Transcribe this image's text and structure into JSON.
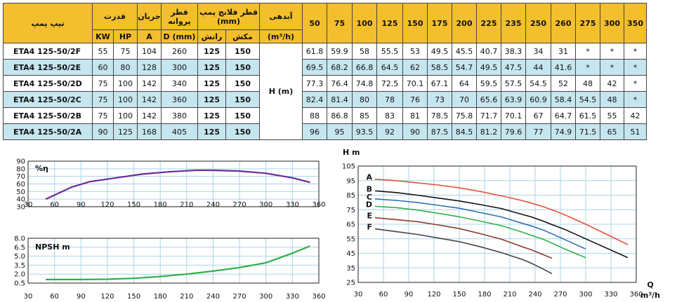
{
  "table": {
    "headers": {
      "model": "تیپ پمپ",
      "power": "قدرت",
      "current": "جریان",
      "impeller": "قطر پروانه",
      "flange": "قطر فلانچ پمپ (mm)",
      "flow": "آبدهی",
      "kw": "KW",
      "hp": "HP",
      "amp": "A",
      "dmm": "D (mm)",
      "discharge": "رانش",
      "suction": "مکش",
      "flow_unit": "(m³/h)",
      "head_label": "H (m)"
    },
    "flow_columns": [
      "50",
      "75",
      "100",
      "125",
      "150",
      "175",
      "200",
      "225",
      "235",
      "250",
      "260",
      "275",
      "300",
      "350"
    ],
    "rows": [
      {
        "model": "ETA4 125-50/2F",
        "kw": "55",
        "hp": "75",
        "a": "104",
        "d": "260",
        "dis": "125",
        "suc": "150",
        "h": [
          "61.8",
          "59.9",
          "58",
          "55.5",
          "53",
          "49.5",
          "45.5",
          "40.7",
          "38.3",
          "34",
          "31",
          "*",
          "*",
          "*"
        ]
      },
      {
        "model": "ETA4 125-50/2E",
        "kw": "60",
        "hp": "80",
        "a": "128",
        "d": "300",
        "dis": "125",
        "suc": "150",
        "h": [
          "69.5",
          "68.2",
          "66.8",
          "64.5",
          "62",
          "58.5",
          "54.7",
          "49.5",
          "47.5",
          "44",
          "41.6",
          "*",
          "*",
          "*"
        ]
      },
      {
        "model": "ETA4 125-50/2D",
        "kw": "75",
        "hp": "100",
        "a": "142",
        "d": "340",
        "dis": "125",
        "suc": "150",
        "h": [
          "77.3",
          "76.4",
          "74.8",
          "72.5",
          "70.1",
          "67.1",
          "64",
          "59.5",
          "57.5",
          "54.5",
          "52",
          "48",
          "42",
          "*"
        ]
      },
      {
        "model": "ETA4 125-50/2C",
        "kw": "75",
        "hp": "100",
        "a": "142",
        "d": "360",
        "dis": "125",
        "suc": "150",
        "h": [
          "82.4",
          "81.4",
          "80",
          "78",
          "76",
          "73",
          "70",
          "65.6",
          "63.9",
          "60.9",
          "58.4",
          "54.5",
          "48",
          "*"
        ]
      },
      {
        "model": "ETA4 125-50/2B",
        "kw": "75",
        "hp": "100",
        "a": "142",
        "d": "380",
        "dis": "125",
        "suc": "150",
        "h": [
          "88",
          "86.8",
          "85",
          "83",
          "81",
          "78.5",
          "75.8",
          "71.7",
          "70.1",
          "67",
          "64.7",
          "61.5",
          "55",
          "42"
        ]
      },
      {
        "model": "ETA4 125-50/2A",
        "kw": "90",
        "hp": "125",
        "a": "168",
        "d": "405",
        "dis": "125",
        "suc": "150",
        "h": [
          "96",
          "95",
          "93.5",
          "92",
          "90",
          "87.5",
          "84.5",
          "81.2",
          "79.6",
          "77",
          "74.9",
          "71.5",
          "65",
          "51"
        ]
      }
    ]
  },
  "chart_data": [
    {
      "type": "line",
      "title": "%η",
      "x_ticks": [
        "30",
        "60",
        "90",
        "120",
        "150",
        "180",
        "210",
        "240",
        "270",
        "300",
        "330",
        "360"
      ],
      "y_ticks": [
        "90",
        "80",
        "70",
        "60",
        "50",
        "40",
        "30"
      ],
      "xlim": [
        30,
        360
      ],
      "ylim": [
        30,
        90
      ],
      "series": [
        {
          "color": "#6a2b9a",
          "x": [
            50,
            80,
            100,
            130,
            160,
            190,
            220,
            240,
            270,
            300,
            330,
            350
          ],
          "y": [
            40,
            56,
            63,
            68,
            73,
            76,
            78,
            78,
            77,
            74,
            68,
            62
          ]
        }
      ]
    },
    {
      "type": "line",
      "title": "NPSH m",
      "x_ticks": [
        "30",
        "60",
        "90",
        "120",
        "150",
        "180",
        "210",
        "240",
        "270",
        "300",
        "330",
        "360"
      ],
      "y_ticks": [
        "8.0",
        "6.5",
        "5.0",
        "3.5",
        "2.0",
        "0.5"
      ],
      "xlim": [
        30,
        360
      ],
      "ylim": [
        0.5,
        8.0
      ],
      "series": [
        {
          "color": "#2fb04a",
          "x": [
            50,
            90,
            120,
            150,
            180,
            210,
            240,
            270,
            300,
            330,
            350
          ],
          "y": [
            1.1,
            1.1,
            1.15,
            1.3,
            1.6,
            2.0,
            2.5,
            3.1,
            3.9,
            5.5,
            6.7
          ]
        }
      ]
    },
    {
      "type": "line",
      "ylabel": "H m",
      "xlabel": "Q",
      "xunit": "m³/h",
      "x_ticks": [
        "30",
        "60",
        "90",
        "120",
        "150",
        "180",
        "210",
        "240",
        "270",
        "300",
        "330",
        "360"
      ],
      "y_ticks": [
        "105",
        "95",
        "85",
        "75",
        "65",
        "55",
        "45",
        "35",
        "25"
      ],
      "xlim": [
        30,
        360
      ],
      "ylim": [
        25,
        105
      ],
      "series": [
        {
          "name": "A",
          "color": "#e8503a",
          "x": [
            50,
            75,
            100,
            125,
            150,
            175,
            200,
            225,
            235,
            250,
            260,
            275,
            300,
            350
          ],
          "y": [
            96,
            95,
            93.5,
            92,
            90,
            87.5,
            84.5,
            81.2,
            79.6,
            77,
            74.9,
            71.5,
            65,
            51
          ]
        },
        {
          "name": "B",
          "color": "#111111",
          "x": [
            50,
            75,
            100,
            125,
            150,
            175,
            200,
            225,
            235,
            250,
            260,
            275,
            300,
            350
          ],
          "y": [
            88,
            86.8,
            85,
            83,
            81,
            78.5,
            75.8,
            71.7,
            70.1,
            67,
            64.7,
            61.5,
            55,
            42
          ]
        },
        {
          "name": "C",
          "color": "#2f6fb8",
          "x": [
            50,
            75,
            100,
            125,
            150,
            175,
            200,
            225,
            235,
            250,
            260,
            275,
            300
          ],
          "y": [
            82.4,
            81.4,
            80,
            78,
            76,
            73,
            70,
            65.6,
            63.9,
            60.9,
            58.4,
            54.5,
            48
          ]
        },
        {
          "name": "D",
          "color": "#2fb04a",
          "x": [
            50,
            75,
            100,
            125,
            150,
            175,
            200,
            225,
            235,
            250,
            260,
            275,
            300
          ],
          "y": [
            77.3,
            76.4,
            74.8,
            72.5,
            70.1,
            67.1,
            64,
            59.5,
            57.5,
            54.5,
            52,
            48,
            42
          ]
        },
        {
          "name": "E",
          "color": "#8b3a2a",
          "x": [
            50,
            75,
            100,
            125,
            150,
            175,
            200,
            225,
            235,
            250,
            260
          ],
          "y": [
            69.5,
            68.2,
            66.8,
            64.5,
            62,
            58.5,
            54.7,
            49.5,
            47.5,
            44,
            41.6
          ]
        },
        {
          "name": "F",
          "color": "#444444",
          "x": [
            50,
            75,
            100,
            125,
            150,
            175,
            200,
            225,
            235,
            250,
            260
          ],
          "y": [
            61.8,
            59.9,
            58,
            55.5,
            53,
            49.5,
            45.5,
            40.7,
            38.3,
            34,
            31
          ]
        }
      ]
    }
  ]
}
